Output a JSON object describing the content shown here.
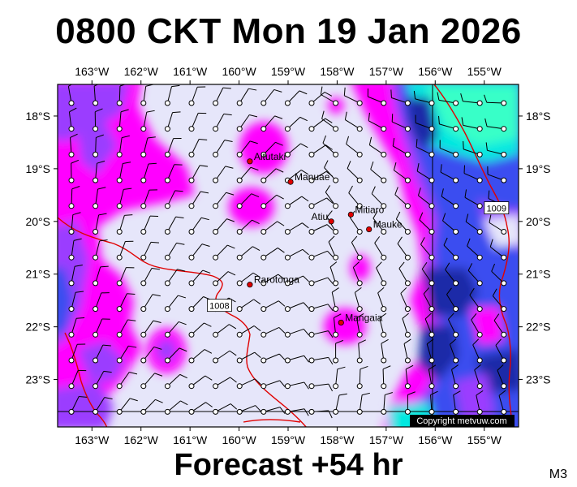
{
  "header": {
    "title": "0800 CKT Mon 19 Jan 2026"
  },
  "footer": {
    "forecast": "Forecast +54 hr",
    "model_code": "M3"
  },
  "map": {
    "lon_labels": [
      "163°W",
      "162°W",
      "161°W",
      "160°W",
      "159°W",
      "158°W",
      "157°W",
      "156°W",
      "155°W"
    ],
    "lon_values": [
      -163,
      -162,
      -161,
      -160,
      -159,
      -158,
      -157,
      -156,
      -155
    ],
    "lat_labels": [
      "18°S",
      "19°S",
      "20°S",
      "21°S",
      "22°S",
      "23°S"
    ],
    "lat_values": [
      -18,
      -19,
      -20,
      -21,
      -22,
      -23
    ],
    "lon_range": [
      -163.7,
      -154.3
    ],
    "lat_range": [
      -17.4,
      -23.9
    ],
    "towns": [
      {
        "name": "Aitutaki",
        "lon": -159.78,
        "lat": -18.86
      },
      {
        "name": "Manuae",
        "lon": -158.95,
        "lat": -19.25
      },
      {
        "name": "Mitiaro",
        "lon": -157.72,
        "lat": -19.87
      },
      {
        "name": "Atiu",
        "lon": -158.12,
        "lat": -20.0
      },
      {
        "name": "Mauke",
        "lon": -157.35,
        "lat": -20.15
      },
      {
        "name": "Rarotonga",
        "lon": -159.78,
        "lat": -21.2
      },
      {
        "name": "Mangaia",
        "lon": -157.92,
        "lat": -21.92
      }
    ],
    "isobars": [
      {
        "label": "1008",
        "label_lon": -160.4,
        "label_lat": -21.6
      },
      {
        "label": "1009",
        "label_lon": -154.75,
        "label_lat": -19.75
      }
    ],
    "copyright": "Copyright metvuw.com",
    "colors": {
      "background_calm": "#e6e6fa",
      "magenta": "#ff00ff",
      "violet": "#9b3dff",
      "blue": "#3b4df0",
      "deep_blue": "#1f2aa8",
      "cyan": "#00e8e0",
      "aqua": "#38ffc8",
      "isobar": "#e00000"
    }
  }
}
